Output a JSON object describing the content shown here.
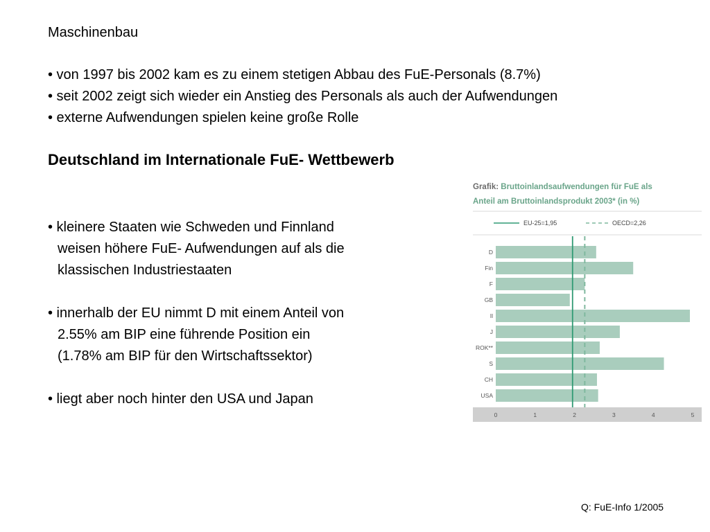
{
  "section_title": "Maschinenbau",
  "bullets_top": [
    "• von 1997 bis 2002 kam es zu einem stetigen Abbau des FuE-Personals (8.7%)",
    "• seit 2002 zeigt sich wieder ein Anstieg des Personals als auch der Aufwendungen",
    "• externe Aufwendungen spielen keine große Rolle"
  ],
  "heading": "Deutschland im Internationale FuE- Wettbewerb",
  "bullets_main": [
    {
      "lines": [
        "• kleinere Staaten wie Schweden und Finnland",
        "weisen höhere FuE- Aufwendungen auf als die",
        "klassischen Industriestaaten"
      ]
    },
    {
      "lines": [
        "• innerhalb der EU nimmt D mit einem Anteil von",
        "2.55% am BIP eine führende Position ein",
        "(1.78% am BIP für den Wirtschaftssektor)"
      ]
    },
    {
      "lines": [
        "• liegt aber noch hinter den USA und Japan"
      ]
    }
  ],
  "source": "Q: FuE-Info 1/2005",
  "chart_data": {
    "type": "bar",
    "orientation": "horizontal",
    "title_prefix": "Grafik:",
    "title_line1": "Bruttoinlandsaufwendungen für FuE als",
    "title_line2": "Anteil am Bruttoinlandsprodukt 2003* (in %)",
    "categories": [
      "D",
      "Fin",
      "F",
      "GB",
      "Il",
      "J",
      "ROK**",
      "S",
      "CH",
      "USA"
    ],
    "values": [
      2.55,
      3.49,
      2.26,
      1.88,
      4.93,
      3.15,
      2.64,
      4.27,
      2.57,
      2.6
    ],
    "xlim": [
      0,
      5
    ],
    "xticks": [
      "0",
      "1",
      "2",
      "3",
      "4",
      "5"
    ],
    "reference_lines": [
      {
        "label": "EU-25=1,95",
        "value": 1.95,
        "style": "solid"
      },
      {
        "label": "OECD=2,26",
        "value": 2.26,
        "style": "dashed"
      }
    ],
    "colors": {
      "bar": "#a9cdbd",
      "line": "#2f9a73",
      "axis_band": "#cfcfcf"
    }
  }
}
